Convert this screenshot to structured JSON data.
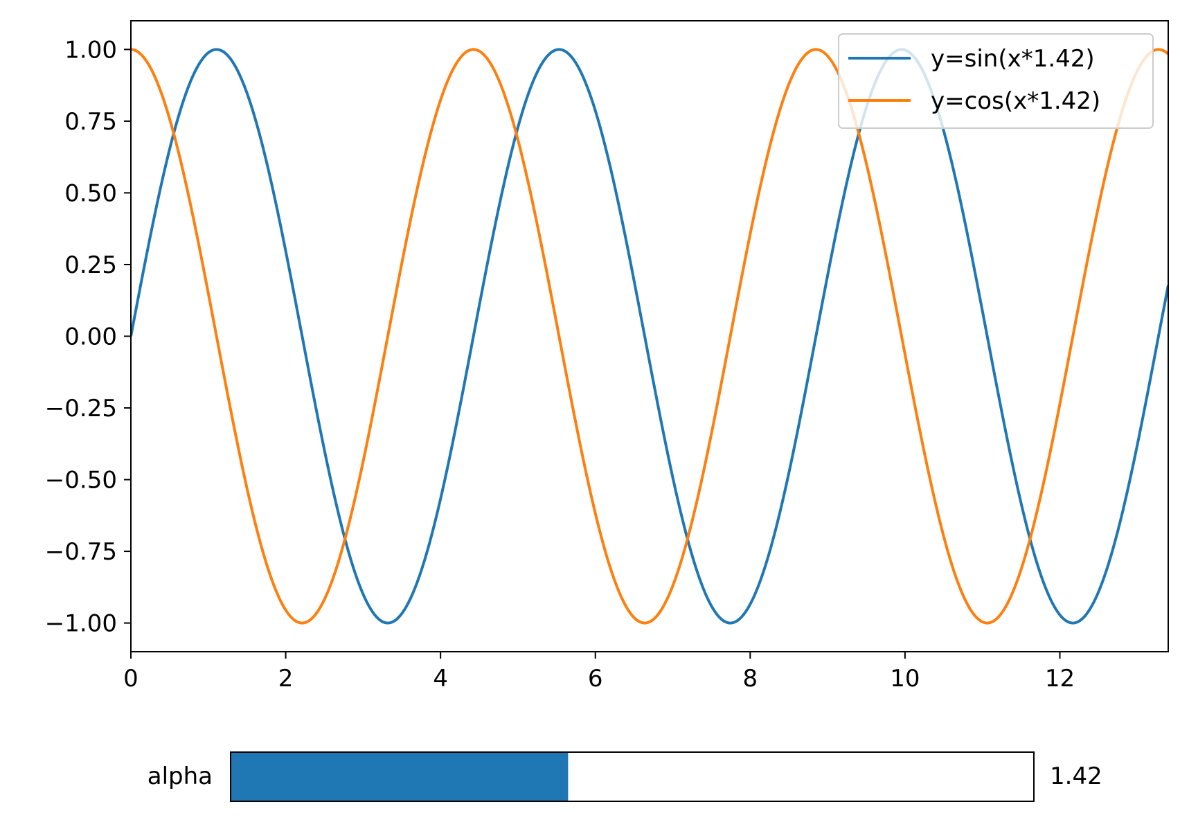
{
  "chart_data": {
    "type": "line",
    "title": "",
    "xlabel": "",
    "ylabel": "",
    "xlim": [
      0,
      13.4
    ],
    "ylim": [
      -1.1,
      1.1
    ],
    "xticks": [
      0,
      2,
      4,
      6,
      8,
      10,
      12
    ],
    "xtick_labels": [
      "0",
      "2",
      "4",
      "6",
      "8",
      "10",
      "12"
    ],
    "yticks": [
      1.0,
      0.75,
      0.5,
      0.25,
      0.0,
      -0.25,
      -0.5,
      -0.75,
      -1.0
    ],
    "ytick_labels": [
      "1.00",
      "0.75",
      "0.50",
      "0.25",
      "0.00",
      "−0.25",
      "−0.50",
      "−0.75",
      "−1.00"
    ],
    "grid": false,
    "legend_position": "top-right",
    "sample_points": 600,
    "series": [
      {
        "name": "y=sin(x*1.42)",
        "function": "sin",
        "frequency": 1.42,
        "color": "#1f77b4"
      },
      {
        "name": "y=cos(x*1.42)",
        "function": "cos",
        "frequency": 1.42,
        "color": "#ff7f0e"
      }
    ]
  },
  "slider": {
    "label": "alpha",
    "value_text": "1.42",
    "value": 1.42,
    "fill_fraction": 0.42,
    "fill_color": "#1f77b4"
  }
}
